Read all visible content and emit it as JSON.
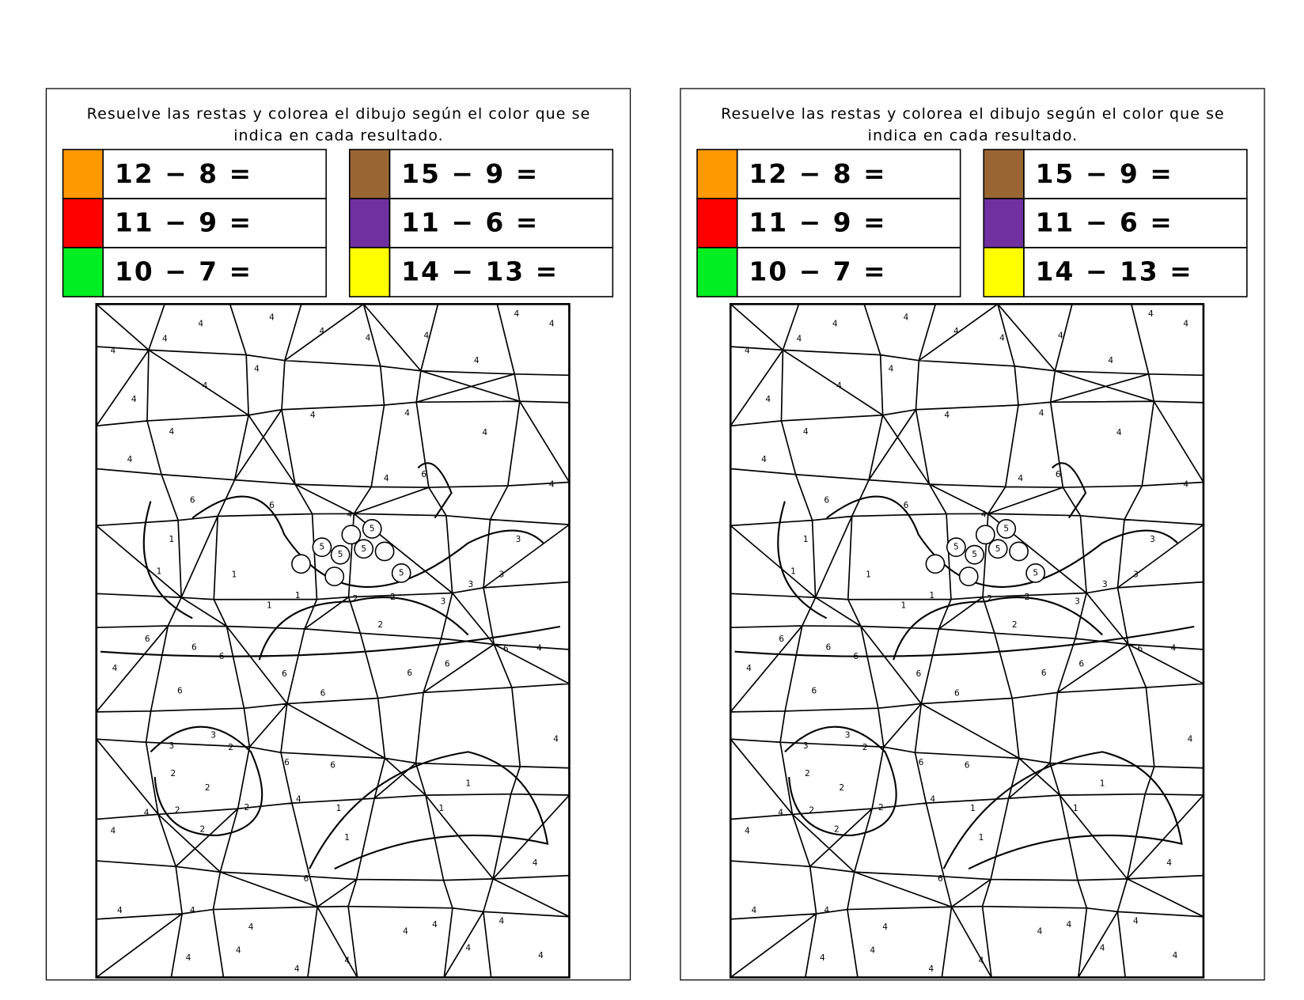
{
  "sheets": [
    {
      "instruction_lines": [
        "Resuelve las restas y colorea el dibujo según el color que se",
        "indica en cada resultado."
      ],
      "left_rows": [
        {
          "color": "#ff9900",
          "text": "12 − 8 ="
        },
        {
          "color": "#ff0000",
          "text": "11 − 9 ="
        },
        {
          "color": "#00ee22",
          "text": "10 − 7 ="
        }
      ],
      "right_rows": [
        {
          "color": "#996633",
          "text": "15 − 9 ="
        },
        {
          "color": "#7030a0",
          "text": "11 − 6 ="
        },
        {
          "color": "#ffff00",
          "text": "14 − 13 ="
        }
      ],
      "picture_numbers": [
        4,
        4,
        4,
        4,
        4,
        4,
        4,
        4,
        4,
        4,
        4,
        4,
        4,
        4,
        4,
        4,
        4,
        4,
        6,
        6,
        6,
        4,
        4,
        1,
        1,
        1,
        1,
        1,
        5,
        5,
        5,
        5,
        5,
        3,
        3,
        3,
        2,
        2,
        2,
        3,
        6,
        6,
        6,
        6,
        6,
        6,
        6,
        6,
        6,
        4,
        4,
        3,
        3,
        2,
        2,
        2,
        2,
        2,
        2,
        6,
        6,
        1,
        1,
        1,
        1,
        6,
        4,
        4,
        4,
        4,
        4,
        4,
        4,
        4,
        4,
        4,
        4,
        4,
        4,
        4,
        4,
        4,
        4,
        4
      ]
    },
    {
      "instruction_lines": [
        "Resuelve las restas y colorea el dibujo según el color que se",
        "indica en cada resultado."
      ],
      "left_rows": [
        {
          "color": "#ff9900",
          "text": "12 − 8 ="
        },
        {
          "color": "#ff0000",
          "text": "11 − 9 ="
        },
        {
          "color": "#00ee22",
          "text": "10 − 7 ="
        }
      ],
      "right_rows": [
        {
          "color": "#996633",
          "text": "15 − 9 ="
        },
        {
          "color": "#7030a0",
          "text": "11 − 6 ="
        },
        {
          "color": "#ffff00",
          "text": "14 − 13 ="
        }
      ],
      "picture_numbers": [
        4,
        4,
        4,
        4,
        4,
        4,
        4,
        4,
        4,
        4,
        4,
        4,
        4,
        4,
        4,
        4,
        4,
        4,
        6,
        6,
        6,
        4,
        4,
        1,
        1,
        1,
        1,
        1,
        5,
        5,
        5,
        5,
        5,
        3,
        3,
        3,
        2,
        2,
        2,
        3,
        6,
        6,
        6,
        6,
        6,
        6,
        6,
        6,
        6,
        4,
        4,
        3,
        3,
        2,
        2,
        2,
        2,
        2,
        2,
        6,
        6,
        1,
        1,
        1,
        1,
        6,
        4,
        4,
        4,
        4,
        4,
        4,
        4,
        4,
        4,
        4,
        4,
        4,
        4,
        4,
        4,
        4,
        4,
        4
      ]
    }
  ]
}
